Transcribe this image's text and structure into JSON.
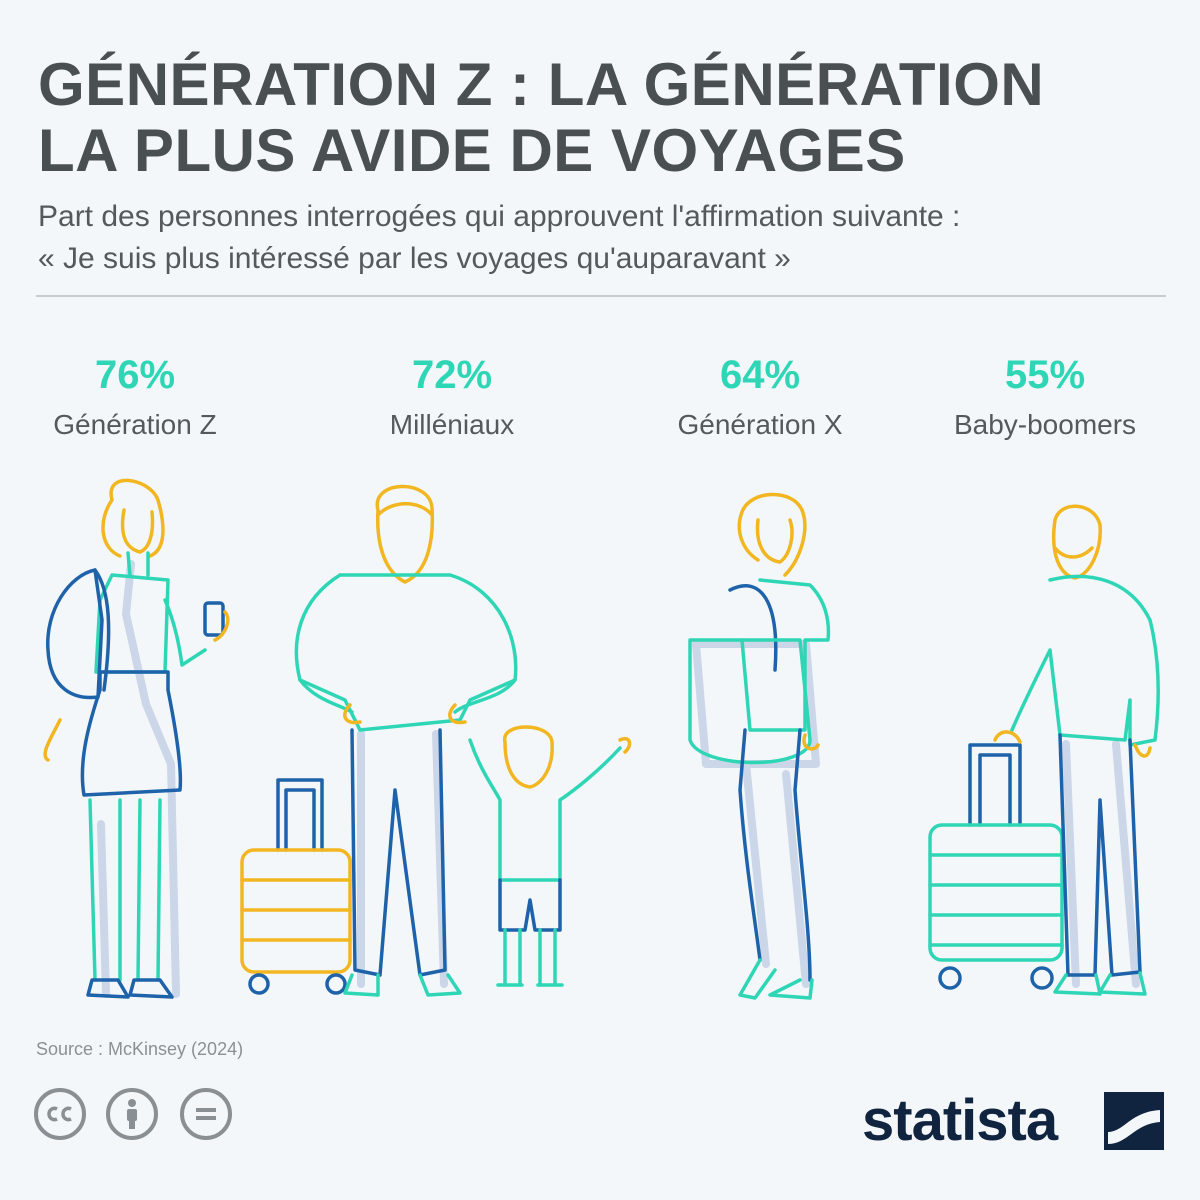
{
  "title": {
    "line1": "GÉNÉRATION Z : LA GÉNÉRATION",
    "line2": "LA PLUS AVIDE DE VOYAGES"
  },
  "subtitle": {
    "line1": "Part des personnes interrogées qui approuvent l'affirmation suivante :",
    "line2": "« Je suis plus intéressé par les voyages qu'auparavant »"
  },
  "chart_data": {
    "type": "table",
    "unit": "%",
    "categories": [
      "Génération Z",
      "Milléniaux",
      "Génération X",
      "Baby-boomers"
    ],
    "values": [
      76,
      72,
      64,
      55
    ],
    "value_labels": [
      "76%",
      "72%",
      "64%",
      "55%"
    ]
  },
  "source": "Source : McKinsey (2024)",
  "brand": "statista",
  "colors": {
    "accent": "#2ed6b5",
    "yellow": "#f2b621",
    "blue": "#1e63aa",
    "shadow": "#ccd6e9",
    "title": "#4a4f52",
    "background": "#f3f7fa"
  },
  "icons": [
    "cc-icon",
    "attribution-icon",
    "no-derivatives-icon",
    "statista-logo-icon"
  ]
}
